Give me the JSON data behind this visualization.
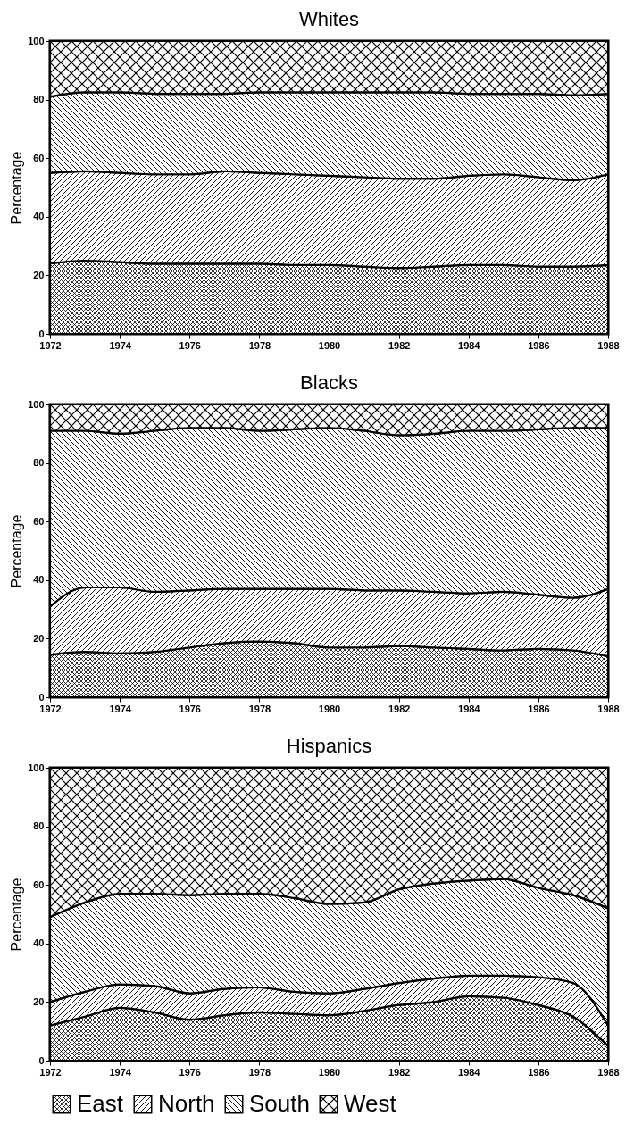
{
  "chart_data": [
    {
      "type": "area",
      "title": "Whites",
      "ylabel": "Percentage",
      "stacked": true,
      "x": [
        1972,
        1973,
        1974,
        1975,
        1976,
        1977,
        1978,
        1979,
        1980,
        1981,
        1982,
        1983,
        1984,
        1985,
        1986,
        1987,
        1988
      ],
      "xlim": [
        1972,
        1988
      ],
      "xticks": [
        1972,
        1974,
        1976,
        1978,
        1980,
        1982,
        1984,
        1986,
        1988
      ],
      "ylim": [
        0,
        100
      ],
      "yticks": [
        0,
        20,
        40,
        60,
        80,
        100
      ],
      "series": [
        {
          "color": "#000000",
          "values": [
            24,
            25,
            24.5,
            24,
            24,
            24,
            24,
            23.5,
            23.5,
            23,
            22.5,
            23,
            23.5,
            23.5,
            23,
            23,
            23.5
          ]
        },
        {
          "color": "#000000",
          "values": [
            31,
            30.5,
            30.5,
            30.5,
            30.5,
            31.5,
            31,
            31,
            30.5,
            30.5,
            30.5,
            30,
            30.5,
            31,
            30.5,
            29.5,
            31
          ]
        },
        {
          "color": "#000000",
          "values": [
            26,
            27,
            27.5,
            27.5,
            27.5,
            26.5,
            27.5,
            28,
            28.5,
            29,
            29.5,
            29.5,
            28,
            27.5,
            28.5,
            29,
            27.5
          ]
        },
        {
          "color": "#000000",
          "values": [
            19,
            17.5,
            17.5,
            18,
            18,
            18,
            17.5,
            17.5,
            17.5,
            17.5,
            17.5,
            17.5,
            18,
            18,
            18,
            18.5,
            18
          ]
        }
      ]
    },
    {
      "type": "area",
      "title": "Blacks",
      "ylabel": "Percentage",
      "stacked": true,
      "x": [
        1972,
        1973,
        1974,
        1975,
        1976,
        1977,
        1978,
        1979,
        1980,
        1981,
        1982,
        1983,
        1984,
        1985,
        1986,
        1987,
        1988
      ],
      "xlim": [
        1972,
        1988
      ],
      "xticks": [
        1972,
        1974,
        1976,
        1978,
        1980,
        1982,
        1984,
        1986,
        1988
      ],
      "ylim": [
        0,
        100
      ],
      "yticks": [
        0,
        20,
        40,
        60,
        80,
        100
      ],
      "series": [
        {
          "color": "#000000",
          "values": [
            14.5,
            15.5,
            15,
            15.5,
            17,
            18.5,
            19,
            18.5,
            17,
            17,
            17.5,
            17,
            16.5,
            16,
            16.5,
            16,
            14
          ]
        },
        {
          "color": "#000000",
          "values": [
            16.5,
            22,
            22.5,
            20.5,
            19.5,
            18.5,
            18,
            18.5,
            20,
            19.5,
            19,
            19,
            19,
            20,
            18.5,
            18,
            23
          ]
        },
        {
          "color": "#000000",
          "values": [
            60,
            53.5,
            52.5,
            55,
            55.5,
            55,
            54,
            54.5,
            55,
            54.5,
            53,
            54,
            55.5,
            55,
            56.5,
            58,
            55
          ]
        },
        {
          "color": "#000000",
          "values": [
            9,
            9,
            10,
            9,
            8,
            8,
            9,
            8.5,
            8,
            9,
            10.5,
            10,
            9,
            9,
            8.5,
            8,
            8
          ]
        }
      ]
    },
    {
      "type": "area",
      "title": "Hispanics",
      "ylabel": "Percentage",
      "stacked": true,
      "legend": "bottom",
      "x": [
        1972,
        1973,
        1974,
        1975,
        1976,
        1977,
        1978,
        1979,
        1980,
        1981,
        1982,
        1983,
        1984,
        1985,
        1986,
        1987,
        1988
      ],
      "xlim": [
        1972,
        1988
      ],
      "xticks": [
        1972,
        1974,
        1976,
        1978,
        1980,
        1982,
        1984,
        1986,
        1988
      ],
      "ylim": [
        0,
        100
      ],
      "yticks": [
        0,
        20,
        40,
        60,
        80,
        100
      ],
      "series": [
        {
          "name": "East",
          "color": "#000000",
          "values": [
            12,
            15,
            18,
            16.5,
            14,
            15.5,
            16.5,
            16,
            15.5,
            17,
            19,
            20,
            22,
            21.5,
            19,
            15,
            5
          ]
        },
        {
          "name": "North",
          "color": "#000000",
          "values": [
            8,
            8.5,
            8,
            9,
            9,
            9,
            8.5,
            7.5,
            7.5,
            7.5,
            7.5,
            8,
            7,
            7.5,
            9.5,
            11.5,
            7
          ]
        },
        {
          "name": "South",
          "color": "#000000",
          "values": [
            29,
            30.5,
            31,
            31.5,
            33.5,
            32.5,
            32,
            32,
            30.5,
            29.5,
            32,
            32.5,
            32.5,
            33,
            30.5,
            30,
            40
          ]
        },
        {
          "name": "West",
          "color": "#000000",
          "values": [
            51,
            46,
            43,
            43,
            43.5,
            43,
            43,
            44.5,
            46.5,
            46,
            41.5,
            39.5,
            38.5,
            38,
            41,
            43.5,
            48
          ]
        }
      ]
    }
  ]
}
